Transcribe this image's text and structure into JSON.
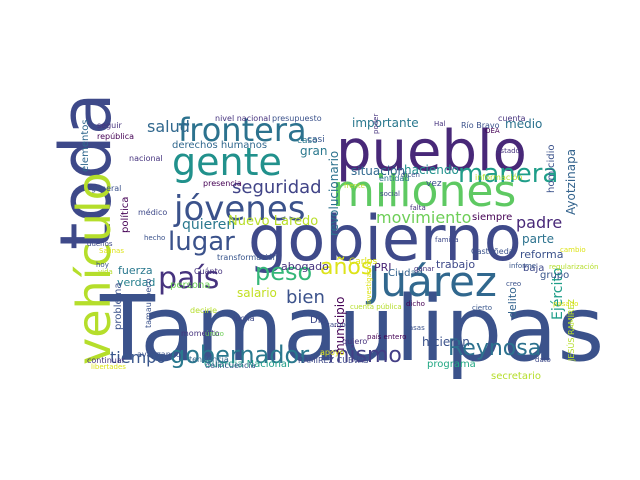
{
  "cloud": {
    "words": [
      {
        "text": "Tamaulipas",
        "color": "#3b528b"
      },
      {
        "text": "gobierno",
        "color": "#3f4a8a"
      },
      {
        "text": "pueblo",
        "color": "#482878"
      },
      {
        "text": "millones",
        "color": "#5ec962"
      },
      {
        "text": "toda",
        "color": "#3e4989"
      },
      {
        "text": "vehículo",
        "color": "#b5de2b"
      },
      {
        "text": "gente",
        "color": "#21918c"
      },
      {
        "text": "Juárez",
        "color": "#31688e"
      },
      {
        "text": "frontera",
        "color": "#2c728e"
      },
      {
        "text": "jóvenes",
        "color": "#3b528b"
      },
      {
        "text": "país",
        "color": "#46337e"
      },
      {
        "text": "gobernador",
        "color": "#2a788e"
      },
      {
        "text": "Reynosa",
        "color": "#2c718e"
      },
      {
        "text": "mismo",
        "color": "#433e85"
      },
      {
        "text": "manera",
        "color": "#1f9e89"
      },
      {
        "text": "lugar",
        "color": "#3b528b"
      },
      {
        "text": "años",
        "color": "#dde318"
      },
      {
        "text": "peso",
        "color": "#35b779"
      },
      {
        "text": "seguridad",
        "color": "#414487"
      },
      {
        "text": "movimiento",
        "color": "#6ece58"
      },
      {
        "text": "tiempo",
        "color": "#39568c"
      },
      {
        "text": "bien",
        "color": "#3b528b"
      },
      {
        "text": "padre",
        "color": "#482878"
      },
      {
        "text": "salud",
        "color": "#31688e"
      },
      {
        "text": "quieren",
        "color": "#2a788e"
      },
      {
        "text": "parte",
        "color": "#2c728e"
      },
      {
        "text": "medio",
        "color": "#2c728e"
      },
      {
        "text": "importante",
        "color": "#2a788e"
      },
      {
        "text": "Ayotzinapa",
        "color": "#33638d"
      },
      {
        "text": "Ejército",
        "color": "#1f9e89"
      },
      {
        "text": "Nuevo Laredo",
        "color": "#b8de29"
      },
      {
        "text": "situación",
        "color": "#31688e"
      },
      {
        "text": "haciendo",
        "color": "#21918c"
      },
      {
        "text": "revolucionario",
        "color": "#2c728e"
      },
      {
        "text": "municipio",
        "color": "#440154"
      },
      {
        "text": "fuerza",
        "color": "#2a788e"
      },
      {
        "text": "verdad",
        "color": "#27808e"
      },
      {
        "text": "problema",
        "color": "#3b528b"
      },
      {
        "text": "salario",
        "color": "#c2df23"
      },
      {
        "text": "abogado",
        "color": "#46337e"
      },
      {
        "text": "trabajo",
        "color": "#3e4989"
      },
      {
        "text": "reforma",
        "color": "#3b528b"
      },
      {
        "text": "delito",
        "color": "#33638d"
      },
      {
        "text": "hicieron",
        "color": "#3b528b"
      },
      {
        "text": "programa",
        "color": "#22a884"
      },
      {
        "text": "Guardia Nacional",
        "color": "#1f9e89"
      },
      {
        "text": "gran",
        "color": "#2a788e"
      },
      {
        "text": "PRI",
        "color": "#482475"
      },
      {
        "text": "Ciudad",
        "color": "#33638d"
      },
      {
        "text": "baja",
        "color": "#3e4989"
      },
      {
        "text": "grupo",
        "color": "#39568c"
      },
      {
        "text": "siempre",
        "color": "#440154"
      },
      {
        "text": "vez",
        "color": "#3b528b"
      },
      {
        "text": "secretario",
        "color": "#b5de2b"
      },
      {
        "text": "derechos humanos",
        "color": "#31688e"
      },
      {
        "text": "homicidio",
        "color": "#3b528b"
      },
      {
        "text": "elementos",
        "color": "#31688e"
      },
      {
        "text": "política",
        "color": "#440154"
      },
      {
        "text": "persona",
        "color": "#6ece58"
      },
      {
        "text": "Dio",
        "color": "#3e4989"
      },
      {
        "text": "Carlos",
        "color": "#dde318"
      },
      {
        "text": "caso",
        "color": "#2a788e"
      },
      {
        "text": "casi",
        "color": "#39568c"
      },
      {
        "text": "entidad",
        "color": "#2c728e"
      },
      {
        "text": "información",
        "color": "#b5de2b"
      },
      {
        "text": "Río Bravo",
        "color": "#3b528b"
      },
      {
        "text": "JESÚS RAMÍREZ",
        "color": "#b5de2b"
      },
      {
        "text": "RAMÍREZ CUEVAS",
        "color": "#3e4989"
      },
      {
        "text": "quiero",
        "color": "#46337e"
      },
      {
        "text": "delincuencia",
        "color": "#39568c"
      },
      {
        "text": "nivel nacional",
        "color": "#46337e"
      },
      {
        "text": "presupuesto",
        "color": "#3b528b"
      },
      {
        "text": "presencia",
        "color": "#440154"
      },
      {
        "text": "transformación",
        "color": "#39568c"
      },
      {
        "text": "nacional",
        "color": "#46337e"
      },
      {
        "text": "general",
        "color": "#3b528b"
      },
      {
        "text": "médico",
        "color": "#3e4989"
      },
      {
        "text": "seguir",
        "color": "#46337e"
      },
      {
        "text": "república",
        "color": "#440154"
      },
      {
        "text": "tamaulipeco",
        "color": "#3b528b"
      },
      {
        "text": "decirle",
        "color": "#b5de2b"
      },
      {
        "text": "Cuánto",
        "color": "#46337e"
      },
      {
        "text": "lucha",
        "color": "#3e4989"
      },
      {
        "text": "momento",
        "color": "#46337e"
      },
      {
        "text": "tendencia",
        "color": "#31688e"
      },
      {
        "text": "apoyo",
        "color": "#dde318"
      },
      {
        "text": "avanzando",
        "color": "#3b528b"
      },
      {
        "text": "continuar",
        "color": "#46337e"
      },
      {
        "text": "Castañeda",
        "color": "#3b528b"
      },
      {
        "text": "cuenta",
        "color": "#46337e"
      },
      {
        "text": "familia",
        "color": "#3e4989"
      },
      {
        "text": "informe",
        "color": "#39568c"
      },
      {
        "text": "regularización",
        "color": "#b5de2b"
      },
      {
        "text": "investigación",
        "color": "#dde318"
      },
      {
        "text": "dicho",
        "color": "#440154"
      },
      {
        "text": "cierto",
        "color": "#39568c"
      },
      {
        "text": "poder",
        "color": "#46337e"
      },
      {
        "text": "dicen",
        "color": "#3b528b"
      },
      {
        "text": "social",
        "color": "#3e4989"
      },
      {
        "text": "OEA",
        "color": "#440154"
      },
      {
        "text": "Hal",
        "color": "#46337e"
      },
      {
        "text": "hecho",
        "color": "#3b528b"
      },
      {
        "text": "dueños",
        "color": "#3e4989"
      },
      {
        "text": "Salinas",
        "color": "#dde318"
      },
      {
        "text": "hoy",
        "color": "#3b528b"
      },
      {
        "text": "vida",
        "color": "#b5de2b"
      },
      {
        "text": "libertades",
        "color": "#dde318"
      },
      {
        "text": "único",
        "color": "#6ece58"
      },
      {
        "text": "ganar",
        "color": "#46337e"
      },
      {
        "text": "cargo",
        "color": "#3e4989"
      },
      {
        "text": "creo",
        "color": "#3b528b"
      },
      {
        "text": "dato",
        "color": "#3e4989"
      },
      {
        "text": "falta",
        "color": "#46337e"
      },
      {
        "text": "cambio",
        "color": "#dde318"
      },
      {
        "text": "frente",
        "color": "#b5de2b"
      },
      {
        "text": "Estado",
        "color": "#46337e"
      },
      {
        "text": "país entero",
        "color": "#440154"
      },
      {
        "text": "casas",
        "color": "#3b528b"
      },
      {
        "text": "cuenta pública",
        "color": "#b5de2b"
      },
      {
        "text": "pasado",
        "color": "#dde318"
      }
    ]
  }
}
